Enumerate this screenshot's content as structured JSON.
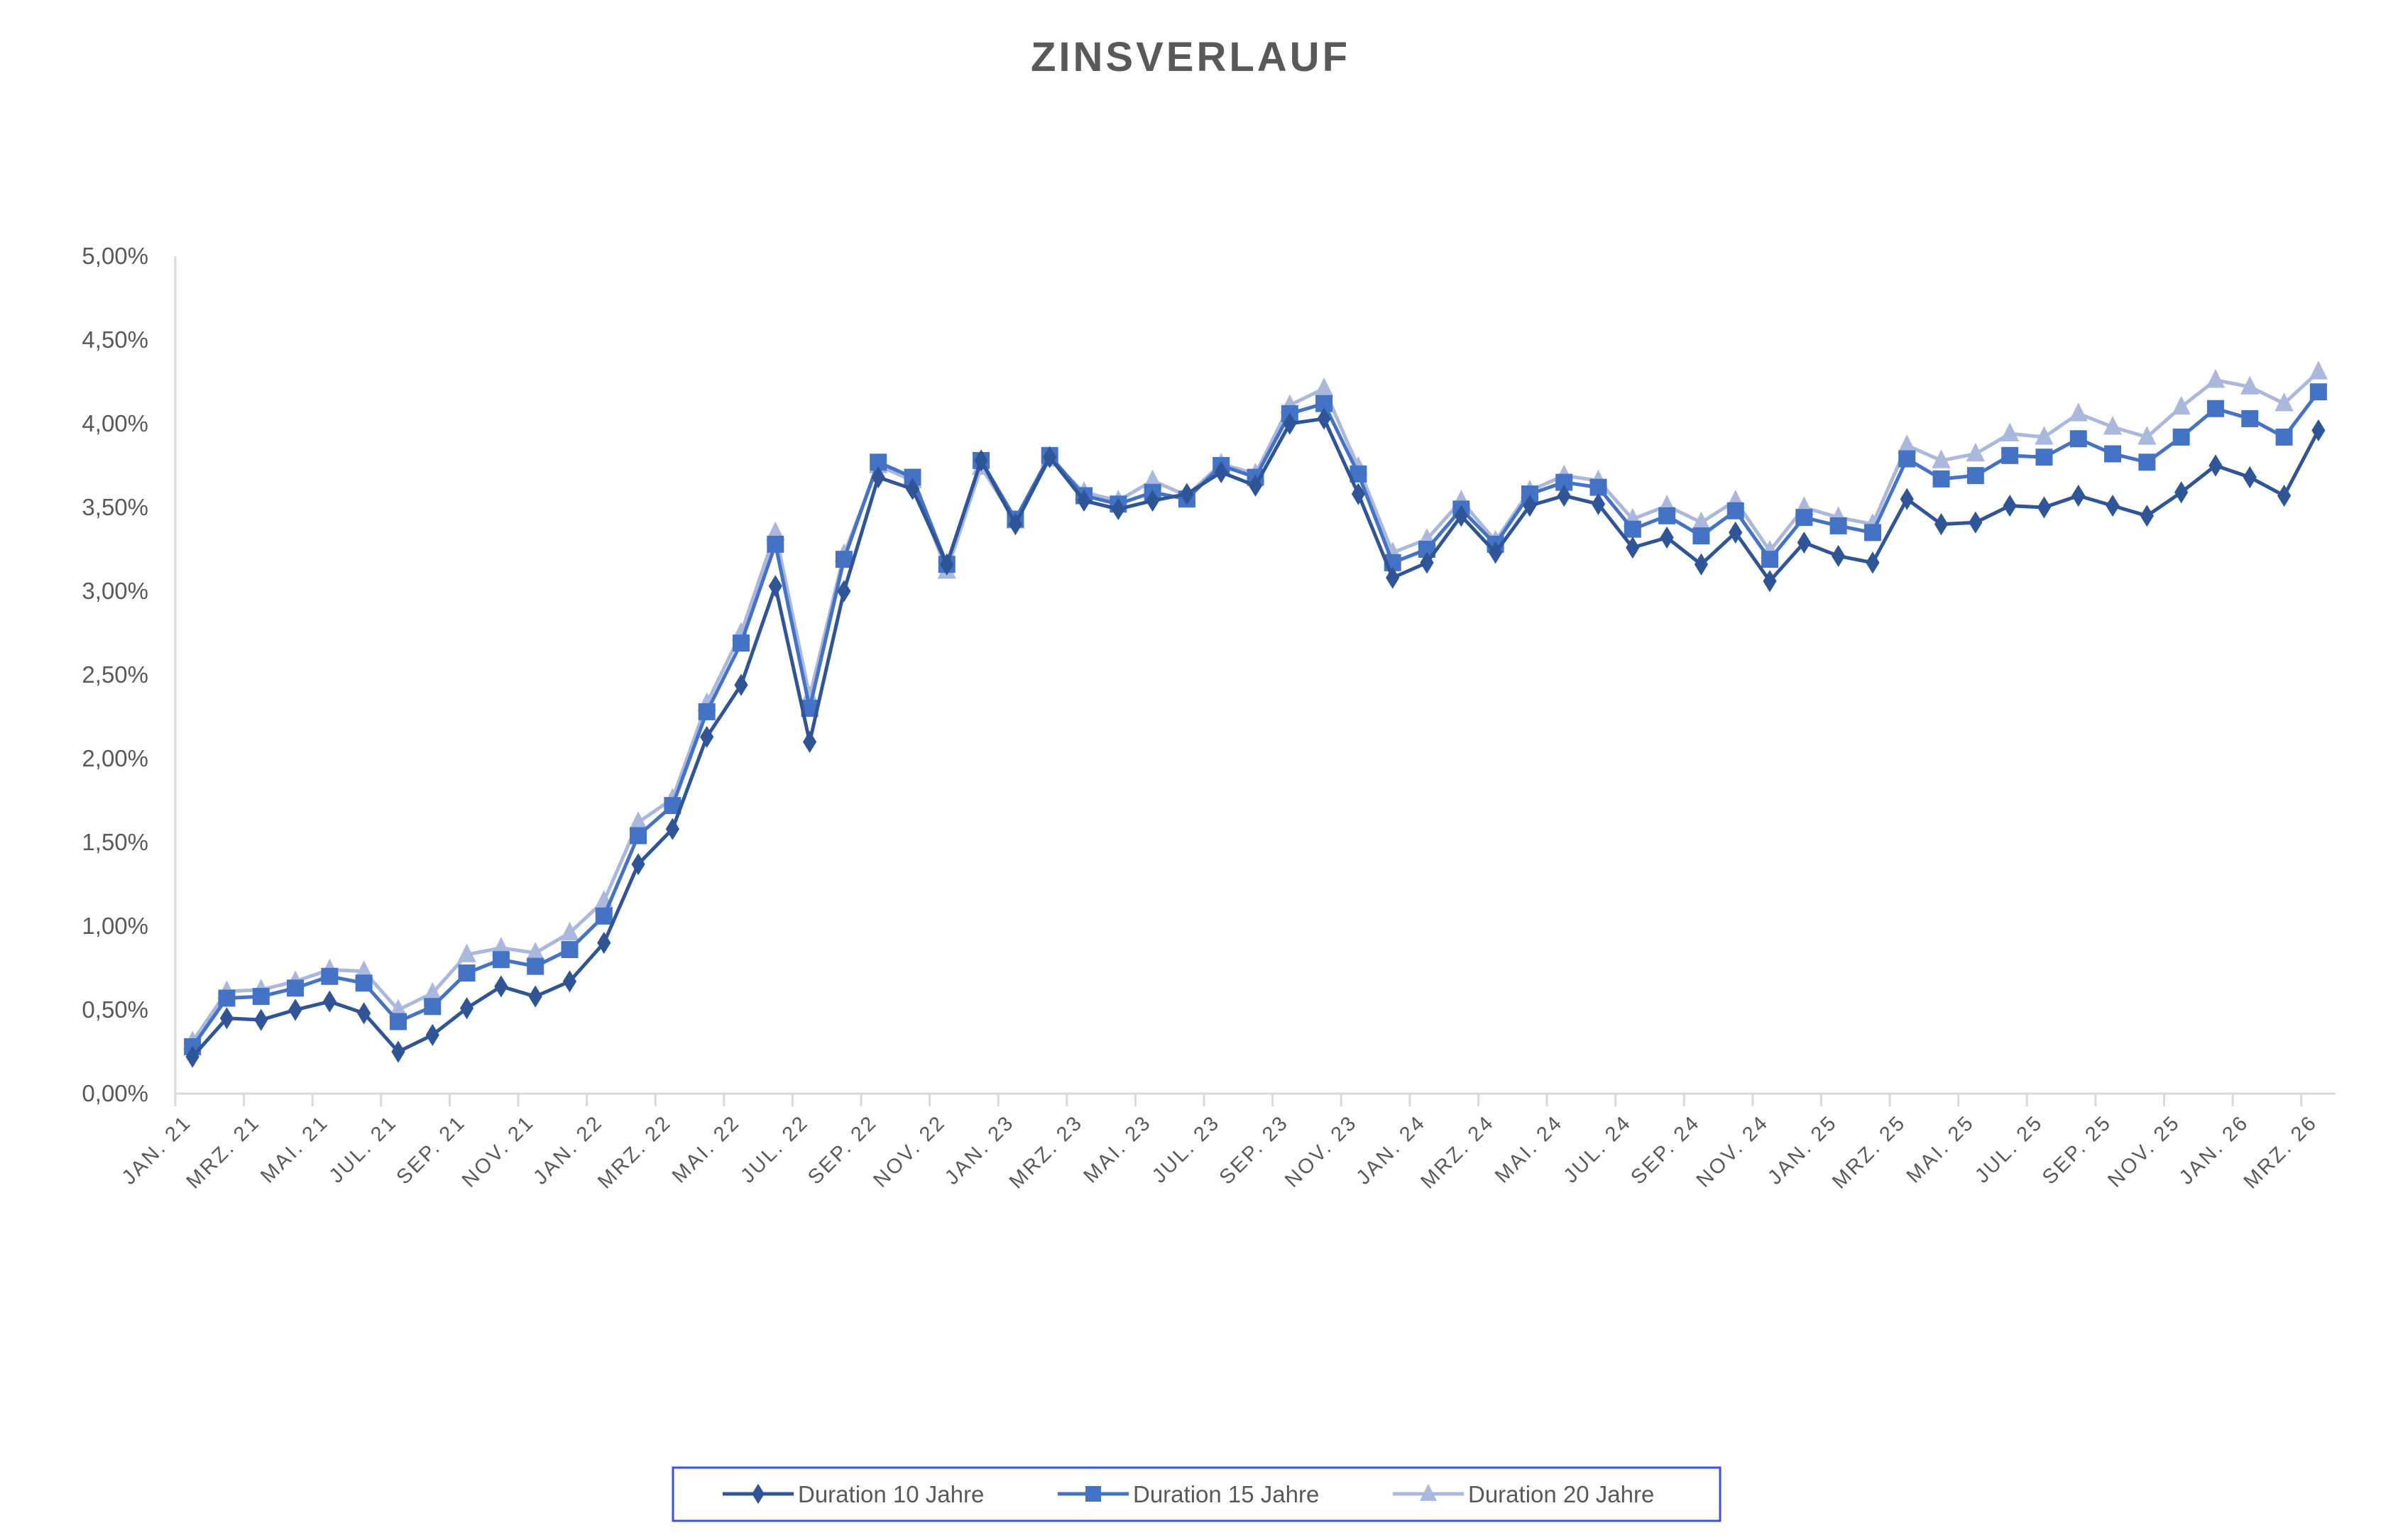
{
  "chart_data": {
    "type": "line",
    "title": "ZINSVERLAUF",
    "xlabel": "",
    "ylabel": "",
    "ylim": [
      0,
      5
    ],
    "y_ticks": [
      "0,00%",
      "0,50%",
      "1,00%",
      "1,50%",
      "2,00%",
      "2,50%",
      "3,00%",
      "3,50%",
      "4,00%",
      "4,50%",
      "5,00%"
    ],
    "x_tick_labels": [
      "JAN. 21",
      "MRZ. 21",
      "MAI. 21",
      "JUL. 21",
      "SEP. 21",
      "NOV. 21",
      "JAN. 22",
      "MRZ. 22",
      "MAI. 22",
      "JUL. 22",
      "SEP. 22",
      "NOV. 22",
      "JAN. 23",
      "MRZ. 23",
      "MAI. 23",
      "JUL. 23",
      "SEP. 23",
      "NOV. 23",
      "JAN. 24",
      "MRZ. 24",
      "MAI. 24",
      "JUL. 24",
      "SEP. 24",
      "NOV. 24",
      "JAN. 25",
      "MRZ. 25",
      "MAI. 25",
      "JUL. 25",
      "SEP. 25",
      "NOV. 25",
      "JAN. 26",
      "MRZ. 26"
    ],
    "x_label_every": 2,
    "grid": false,
    "legend_position": "bottom",
    "series": [
      {
        "name": "Duration 10 Jahre",
        "color": "#2F5597",
        "marker": "diamond",
        "values": [
          0.22,
          0.45,
          0.44,
          0.5,
          0.55,
          0.48,
          0.25,
          0.35,
          0.51,
          0.64,
          0.58,
          0.67,
          0.9,
          1.37,
          1.58,
          2.13,
          2.44,
          3.03,
          2.1,
          3.0,
          3.68,
          3.61,
          3.16,
          3.78,
          3.4,
          3.8,
          3.54,
          3.49,
          3.54,
          3.58,
          3.71,
          3.63,
          4.0,
          4.03,
          3.58,
          3.08,
          3.17,
          3.45,
          3.23,
          3.51,
          3.57,
          3.52,
          3.26,
          3.32,
          3.16,
          3.35,
          3.06,
          3.29,
          3.21,
          3.17,
          3.55,
          3.4,
          3.41,
          3.51,
          3.5,
          3.57,
          3.51,
          3.45,
          3.59,
          3.75,
          3.68,
          3.57,
          3.96
        ]
      },
      {
        "name": "Duration 15 Jahre",
        "color": "#4472C4",
        "marker": "square",
        "values": [
          0.28,
          0.57,
          0.58,
          0.63,
          0.7,
          0.66,
          0.43,
          0.52,
          0.72,
          0.8,
          0.76,
          0.86,
          1.06,
          1.54,
          1.72,
          2.28,
          2.69,
          3.28,
          2.3,
          3.19,
          3.77,
          3.68,
          3.16,
          3.78,
          3.43,
          3.81,
          3.57,
          3.52,
          3.59,
          3.55,
          3.75,
          3.68,
          4.06,
          4.12,
          3.7,
          3.17,
          3.25,
          3.49,
          3.28,
          3.58,
          3.65,
          3.62,
          3.37,
          3.45,
          3.33,
          3.48,
          3.19,
          3.44,
          3.39,
          3.35,
          3.79,
          3.67,
          3.69,
          3.81,
          3.8,
          3.91,
          3.82,
          3.77,
          3.92,
          4.09,
          4.03,
          3.92,
          4.19
        ]
      },
      {
        "name": "Duration 20 Jahre",
        "color": "#A9B8DC",
        "marker": "triangle",
        "values": [
          0.31,
          0.61,
          0.62,
          0.67,
          0.74,
          0.73,
          0.5,
          0.6,
          0.83,
          0.87,
          0.84,
          0.96,
          1.15,
          1.62,
          1.76,
          2.33,
          2.75,
          3.35,
          2.37,
          3.22,
          3.75,
          3.66,
          3.12,
          3.74,
          3.42,
          3.79,
          3.59,
          3.54,
          3.66,
          3.57,
          3.76,
          3.7,
          4.11,
          4.21,
          3.74,
          3.23,
          3.31,
          3.54,
          3.3,
          3.6,
          3.69,
          3.66,
          3.43,
          3.51,
          3.41,
          3.54,
          3.24,
          3.5,
          3.44,
          3.4,
          3.87,
          3.78,
          3.82,
          3.94,
          3.92,
          4.06,
          3.98,
          3.92,
          4.1,
          4.26,
          4.22,
          4.12,
          4.31
        ]
      }
    ]
  }
}
